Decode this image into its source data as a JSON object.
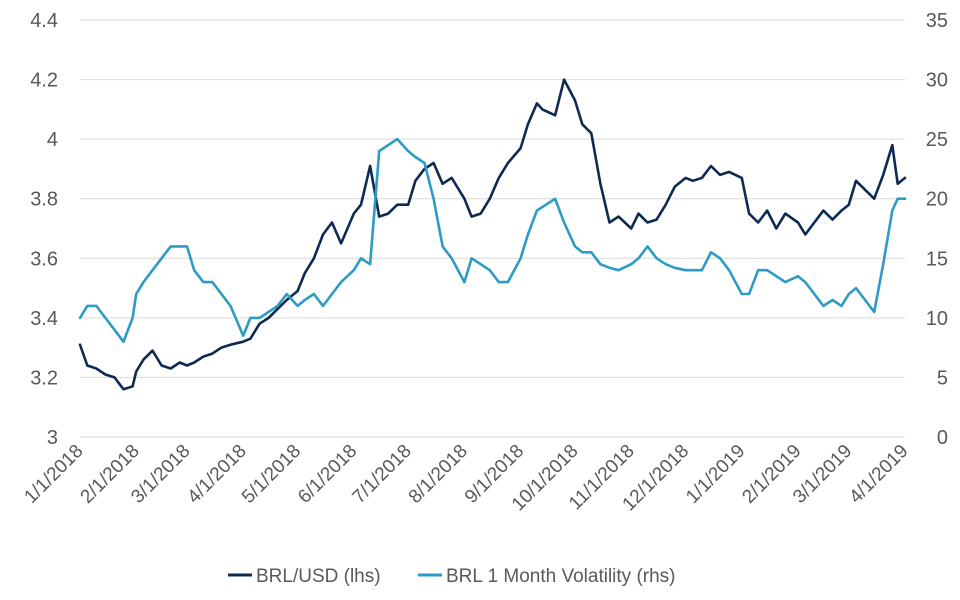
{
  "chart_data": {
    "type": "line",
    "title": "",
    "xlabel": "",
    "ylabel_left": "",
    "ylabel_right": "",
    "x_ticks": [
      "1/1/2018",
      "2/1/2018",
      "3/1/2018",
      "4/1/2018",
      "5/1/2018",
      "6/1/2018",
      "7/1/2018",
      "8/1/2018",
      "9/1/2018",
      "10/1/2018",
      "11/1/2018",
      "12/1/2018",
      "1/1/2019",
      "2/1/2019",
      "3/1/2019",
      "4/1/2019"
    ],
    "y_left": {
      "ticks": [
        "3",
        "3.2",
        "3.4",
        "3.6",
        "3.8",
        "4",
        "4.2",
        "4.4"
      ],
      "ylim": [
        3,
        4.4
      ]
    },
    "y_right": {
      "ticks": [
        "0",
        "5",
        "10",
        "15",
        "20",
        "25",
        "30",
        "35"
      ],
      "ylim": [
        0,
        35
      ]
    },
    "grid": "horizontal",
    "legend_position": "bottom",
    "legend": [
      {
        "name": "BRL/USD (lhs)",
        "color": "#0d2b52"
      },
      {
        "name": "BRL 1 Month Volatility (rhs)",
        "color": "#2e9bc4"
      }
    ],
    "series": [
      {
        "name": "BRL/USD (lhs)",
        "axis": "left",
        "color": "#0d2b52",
        "x": [
          "2018-01-01",
          "2018-01-05",
          "2018-01-10",
          "2018-01-15",
          "2018-01-20",
          "2018-01-25",
          "2018-01-30",
          "2018-02-01",
          "2018-02-05",
          "2018-02-10",
          "2018-02-15",
          "2018-02-20",
          "2018-02-25",
          "2018-03-01",
          "2018-03-05",
          "2018-03-10",
          "2018-03-15",
          "2018-03-20",
          "2018-03-25",
          "2018-04-01",
          "2018-04-05",
          "2018-04-10",
          "2018-04-15",
          "2018-04-20",
          "2018-04-25",
          "2018-05-01",
          "2018-05-05",
          "2018-05-10",
          "2018-05-15",
          "2018-05-20",
          "2018-05-25",
          "2018-06-01",
          "2018-06-05",
          "2018-06-10",
          "2018-06-15",
          "2018-06-20",
          "2018-06-25",
          "2018-07-01",
          "2018-07-05",
          "2018-07-10",
          "2018-07-15",
          "2018-07-20",
          "2018-07-25",
          "2018-08-01",
          "2018-08-05",
          "2018-08-10",
          "2018-08-15",
          "2018-08-20",
          "2018-08-25",
          "2018-09-01",
          "2018-09-05",
          "2018-09-10",
          "2018-09-13",
          "2018-09-20",
          "2018-09-25",
          "2018-10-01",
          "2018-10-05",
          "2018-10-10",
          "2018-10-15",
          "2018-10-20",
          "2018-10-25",
          "2018-11-01",
          "2018-11-05",
          "2018-11-10",
          "2018-11-15",
          "2018-11-20",
          "2018-11-25",
          "2018-12-01",
          "2018-12-05",
          "2018-12-10",
          "2018-12-15",
          "2018-12-20",
          "2018-12-25",
          "2019-01-01",
          "2019-01-05",
          "2019-01-10",
          "2019-01-15",
          "2019-01-20",
          "2019-01-25",
          "2019-02-01",
          "2019-02-05",
          "2019-02-10",
          "2019-02-15",
          "2019-02-20",
          "2019-02-25",
          "2019-03-01",
          "2019-03-05",
          "2019-03-10",
          "2019-03-15",
          "2019-03-20",
          "2019-03-25",
          "2019-03-28",
          "2019-04-01"
        ],
        "values": [
          3.31,
          3.24,
          3.23,
          3.21,
          3.2,
          3.16,
          3.17,
          3.22,
          3.26,
          3.29,
          3.24,
          3.23,
          3.25,
          3.24,
          3.25,
          3.27,
          3.28,
          3.3,
          3.31,
          3.32,
          3.33,
          3.38,
          3.4,
          3.43,
          3.46,
          3.49,
          3.55,
          3.6,
          3.68,
          3.72,
          3.65,
          3.75,
          3.78,
          3.91,
          3.74,
          3.75,
          3.78,
          3.78,
          3.86,
          3.9,
          3.92,
          3.85,
          3.87,
          3.8,
          3.74,
          3.75,
          3.8,
          3.87,
          3.92,
          3.97,
          4.05,
          4.12,
          4.1,
          4.08,
          4.2,
          4.13,
          4.05,
          4.02,
          3.85,
          3.72,
          3.74,
          3.7,
          3.75,
          3.72,
          3.73,
          3.78,
          3.84,
          3.87,
          3.86,
          3.87,
          3.91,
          3.88,
          3.89,
          3.87,
          3.75,
          3.72,
          3.76,
          3.7,
          3.75,
          3.72,
          3.68,
          3.72,
          3.76,
          3.73,
          3.76,
          3.78,
          3.86,
          3.83,
          3.8,
          3.88,
          3.98,
          3.85,
          3.87
        ]
      },
      {
        "name": "BRL 1 Month Volatility (rhs)",
        "axis": "right",
        "color": "#2e9bc4",
        "x": [
          "2018-01-01",
          "2018-01-05",
          "2018-01-10",
          "2018-01-15",
          "2018-01-20",
          "2018-01-25",
          "2018-01-30",
          "2018-02-01",
          "2018-02-05",
          "2018-02-10",
          "2018-02-15",
          "2018-02-20",
          "2018-02-25",
          "2018-03-01",
          "2018-03-05",
          "2018-03-10",
          "2018-03-15",
          "2018-03-20",
          "2018-03-25",
          "2018-04-01",
          "2018-04-05",
          "2018-04-10",
          "2018-04-15",
          "2018-04-20",
          "2018-04-25",
          "2018-05-01",
          "2018-05-05",
          "2018-05-10",
          "2018-05-15",
          "2018-05-20",
          "2018-05-25",
          "2018-06-01",
          "2018-06-05",
          "2018-06-10",
          "2018-06-15",
          "2018-06-20",
          "2018-06-25",
          "2018-07-01",
          "2018-07-05",
          "2018-07-10",
          "2018-07-15",
          "2018-07-20",
          "2018-07-25",
          "2018-08-01",
          "2018-08-05",
          "2018-08-10",
          "2018-08-15",
          "2018-08-20",
          "2018-08-25",
          "2018-09-01",
          "2018-09-05",
          "2018-09-10",
          "2018-09-15",
          "2018-09-20",
          "2018-09-25",
          "2018-10-01",
          "2018-10-05",
          "2018-10-10",
          "2018-10-15",
          "2018-10-20",
          "2018-10-25",
          "2018-11-01",
          "2018-11-05",
          "2018-11-10",
          "2018-11-15",
          "2018-11-20",
          "2018-11-25",
          "2018-12-01",
          "2018-12-05",
          "2018-12-10",
          "2018-12-15",
          "2018-12-20",
          "2018-12-25",
          "2019-01-01",
          "2019-01-05",
          "2019-01-10",
          "2019-01-15",
          "2019-01-20",
          "2019-01-25",
          "2019-02-01",
          "2019-02-05",
          "2019-02-10",
          "2019-02-15",
          "2019-02-20",
          "2019-02-25",
          "2019-03-01",
          "2019-03-05",
          "2019-03-10",
          "2019-03-15",
          "2019-03-20",
          "2019-03-25",
          "2019-03-28",
          "2019-04-01"
        ],
        "values": [
          10,
          11,
          11,
          10,
          9,
          8,
          10,
          12,
          13,
          14,
          15,
          16,
          16,
          16,
          14,
          13,
          13,
          12,
          11,
          8.5,
          10,
          10,
          10.5,
          11,
          12,
          11,
          11.5,
          12,
          11,
          12,
          13,
          14,
          15,
          14.5,
          24,
          24.5,
          25,
          24,
          23.5,
          23,
          20,
          16,
          15,
          13,
          15,
          14.5,
          14,
          13,
          13,
          15,
          17,
          19,
          19.5,
          20,
          18,
          16,
          15.5,
          15.5,
          14.5,
          14.2,
          14,
          14.5,
          15,
          16,
          15,
          14.5,
          14.2,
          14,
          14,
          14,
          15.5,
          15,
          14,
          12,
          12,
          14,
          14,
          13.5,
          13,
          13.5,
          13,
          12,
          11,
          11.5,
          11,
          12,
          12.5,
          11.5,
          10.5,
          14.5,
          19,
          20,
          20
        ]
      }
    ]
  }
}
